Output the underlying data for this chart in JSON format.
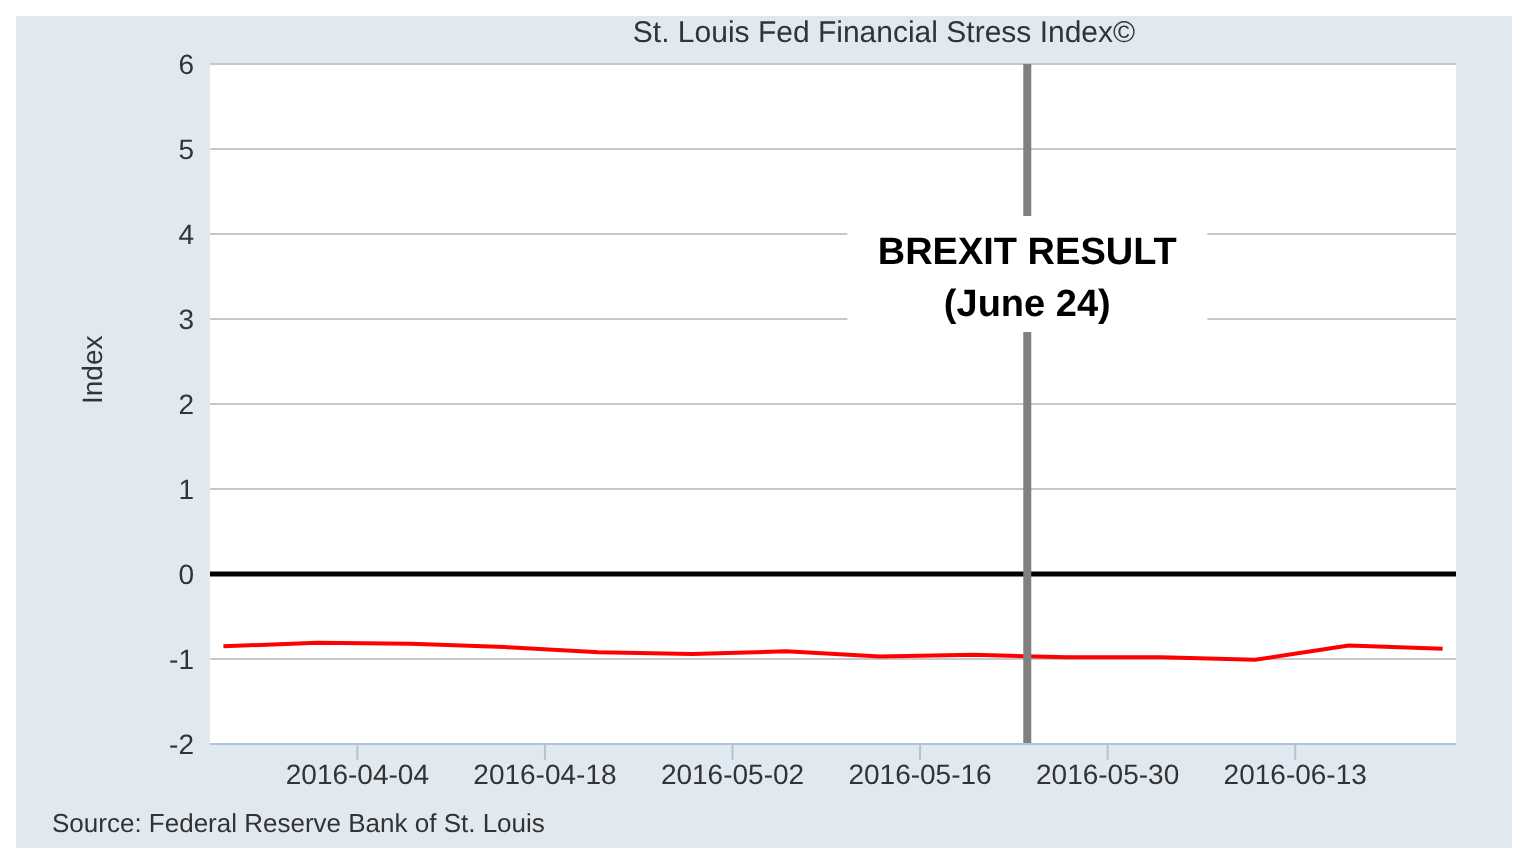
{
  "chart_data": {
    "type": "line",
    "title": "St. Louis Fed Financial Stress Index©",
    "ylabel": "Index",
    "x": [
      "2016-03-25",
      "2016-04-01",
      "2016-04-08",
      "2016-04-15",
      "2016-04-22",
      "2016-04-29",
      "2016-05-06",
      "2016-05-13",
      "2016-05-20",
      "2016-05-27",
      "2016-06-03",
      "2016-06-10",
      "2016-06-17",
      "2016-06-24"
    ],
    "series": [
      {
        "color": "#ff0000",
        "values": [
          -0.85,
          -0.81,
          -0.82,
          -0.86,
          -0.92,
          -0.94,
          -0.91,
          -0.97,
          -0.95,
          -0.98,
          -0.98,
          -1.01,
          -0.84,
          -0.88
        ]
      }
    ],
    "xlim": [
      "2016-03-24",
      "2016-06-25"
    ],
    "xticks": [
      "2016-04-04",
      "2016-04-18",
      "2016-05-02",
      "2016-05-16",
      "2016-05-30",
      "2016-06-13"
    ],
    "ylim": [
      -2,
      6
    ],
    "yticks": [
      -2,
      -1,
      0,
      1,
      2,
      3,
      4,
      5,
      6
    ],
    "ref_lines": [
      {
        "axis": "y",
        "value": 0,
        "color": "#000000"
      },
      {
        "axis": "x",
        "value": "2016-05-24",
        "label": "BREXIT RESULT\n(June 24)",
        "color": "#808080"
      }
    ],
    "grid": "y",
    "marker": "none",
    "line_style": "solid",
    "annotations": [
      "Source: Federal Reserve Bank of St. Louis"
    ]
  }
}
